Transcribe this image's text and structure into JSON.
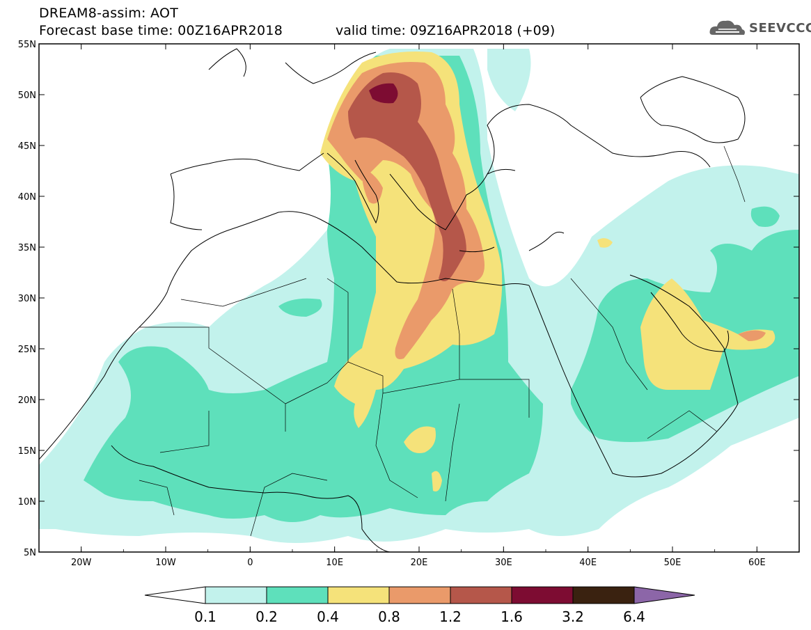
{
  "header": {
    "title_line1": "DREAM8-assim: AOT",
    "forecast_base": "Forecast base time: 00Z16APR2018",
    "valid_time": "valid time: 09Z16APR2018 (+09)"
  },
  "logo": {
    "text": "SEEVCCC",
    "icon": "cloud-icon"
  },
  "map": {
    "lon_range": [
      -25,
      65
    ],
    "lat_range": [
      5,
      55
    ],
    "lat_ticks": [
      "55N",
      "50N",
      "45N",
      "40N",
      "35N",
      "30N",
      "25N",
      "20N",
      "15N",
      "10N",
      "5N"
    ],
    "lon_ticks": [
      "20W",
      "10W",
      "0",
      "10E",
      "20E",
      "30E",
      "40E",
      "50E",
      "60E"
    ]
  },
  "colorbar": {
    "levels": [
      "0.1",
      "0.2",
      "0.4",
      "0.8",
      "1.2",
      "1.6",
      "3.2",
      "6.4"
    ],
    "colors": [
      "#ffffff",
      "#c2f2ec",
      "#5ee0bb",
      "#f5e27a",
      "#ea9a6a",
      "#b5574a",
      "#7d0c32",
      "#3a2210",
      "#8c66a8"
    ]
  },
  "fields": {
    "c02": "#c2f2ec",
    "c04": "#5ee0bb",
    "c08": "#f5e27a",
    "c12": "#ea9a6a",
    "c16": "#b5574a",
    "c32": "#7d0c32"
  }
}
